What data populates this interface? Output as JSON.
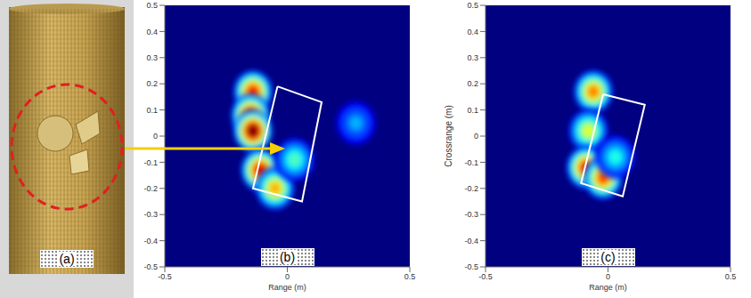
{
  "photo": {
    "label": "(a)"
  },
  "chart_data": [
    {
      "type": "heatmap",
      "label": "(b)",
      "x_label": "Range (m)",
      "xlim": [
        -0.5,
        0.5
      ],
      "xticks": [
        -0.5,
        0,
        0.5
      ],
      "ylim": [
        -0.5,
        0.5
      ],
      "yticks": [
        -0.5,
        -0.4,
        -0.3,
        -0.2,
        -0.1,
        0,
        0.1,
        0.2,
        0.3,
        0.4,
        0.5
      ],
      "clim": [
        0,
        1
      ],
      "spots": [
        {
          "x": -0.14,
          "y": 0.17,
          "value": 0.85
        },
        {
          "x": -0.15,
          "y": 0.08,
          "value": 0.9
        },
        {
          "x": -0.14,
          "y": 0.02,
          "value": 1
        },
        {
          "x": -0.11,
          "y": -0.13,
          "value": 0.9
        },
        {
          "x": -0.05,
          "y": -0.2,
          "value": 0.7
        },
        {
          "x": 0.03,
          "y": -0.09,
          "value": 0.45
        },
        {
          "x": 0.28,
          "y": 0.05,
          "value": 0.3
        }
      ],
      "box": [
        [
          -0.04,
          0.19
        ],
        [
          0.14,
          0.13
        ],
        [
          0.06,
          -0.25
        ],
        [
          -0.14,
          -0.2
        ]
      ]
    },
    {
      "type": "heatmap",
      "label": "(c)",
      "x_label": "Range (m)",
      "y_label": "Crossrange (m)",
      "xlim": [
        -0.5,
        0.5
      ],
      "xticks": [
        -0.5,
        0,
        0.5
      ],
      "ylim": [
        -0.5,
        0.5
      ],
      "yticks": [
        -0.5,
        -0.4,
        -0.3,
        -0.2,
        -0.1,
        0,
        0.1,
        0.2,
        0.3,
        0.4,
        0.5
      ],
      "clim": [
        0,
        1
      ],
      "spots": [
        {
          "x": -0.06,
          "y": 0.17,
          "value": 0.75
        },
        {
          "x": -0.08,
          "y": 0.02,
          "value": 0.6
        },
        {
          "x": -0.09,
          "y": -0.12,
          "value": 0.85
        },
        {
          "x": -0.02,
          "y": -0.16,
          "value": 0.8
        },
        {
          "x": 0.03,
          "y": -0.08,
          "value": 0.4
        }
      ],
      "box": [
        [
          -0.02,
          0.16
        ],
        [
          0.15,
          0.12
        ],
        [
          0.06,
          -0.23
        ],
        [
          -0.11,
          -0.18
        ]
      ]
    }
  ]
}
